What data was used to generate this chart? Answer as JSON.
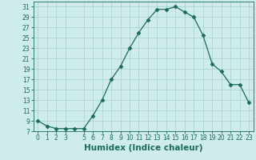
{
  "x": [
    0,
    1,
    2,
    3,
    4,
    5,
    6,
    7,
    8,
    9,
    10,
    11,
    12,
    13,
    14,
    15,
    16,
    17,
    18,
    19,
    20,
    21,
    22,
    23
  ],
  "y": [
    9,
    8,
    7.5,
    7.5,
    7.5,
    7.5,
    10,
    13,
    17,
    19.5,
    23,
    26,
    28.5,
    30.5,
    30.5,
    31,
    30,
    29,
    25.5,
    20,
    18.5,
    16,
    16,
    12.5
  ],
  "line_color": "#1a6b5a",
  "marker": "D",
  "marker_size": 2.5,
  "bg_color": "#ceecea",
  "grid_color": "#aed4d1",
  "xlabel": "Humidex (Indice chaleur)",
  "xlim": [
    -0.5,
    23.5
  ],
  "ylim": [
    7,
    32
  ],
  "yticks": [
    7,
    9,
    11,
    13,
    15,
    17,
    19,
    21,
    23,
    25,
    27,
    29,
    31
  ],
  "xticks": [
    0,
    1,
    2,
    3,
    5,
    6,
    7,
    8,
    9,
    10,
    11,
    12,
    13,
    14,
    15,
    16,
    17,
    18,
    19,
    20,
    21,
    22,
    23
  ],
  "tick_color": "#1a6b5a",
  "xlabel_fontsize": 7.5,
  "tick_fontsize": 5.5
}
